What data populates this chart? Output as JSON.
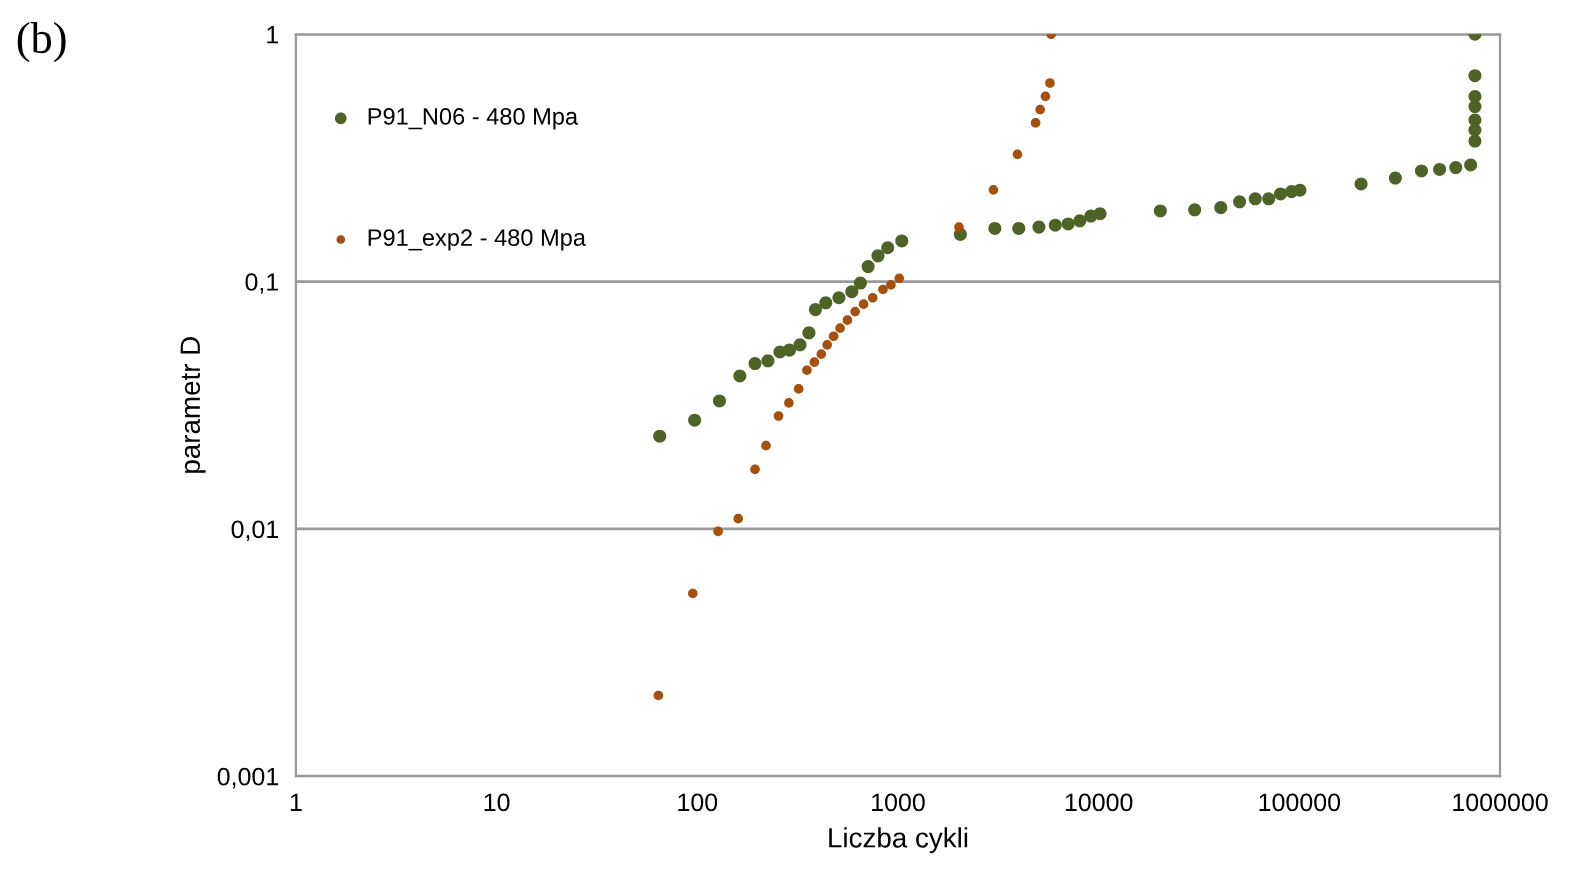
{
  "chart_data": {
    "type": "scatter",
    "title": "(b)",
    "xlabel": "Liczba cykli",
    "ylabel": "parametr D",
    "log": "xy",
    "grid": "y",
    "legend": "top left",
    "marker": "circle",
    "xlim": [
      1,
      1000000
    ],
    "ylim": [
      0.001,
      1
    ],
    "xticks": [
      1,
      10,
      100,
      1000,
      10000,
      100000,
      1000000
    ],
    "yticks": [
      {
        "value": 0.001,
        "label": "0,001"
      },
      {
        "value": 0.01,
        "label": "0,01"
      },
      {
        "value": 0.1,
        "label": "0,1"
      },
      1
    ],
    "series": [
      {
        "name": "P91_N06 - 480 Mpa",
        "color": "#4f6228",
        "x": [
          65,
          97,
          129,
          163,
          194,
          225,
          258,
          288,
          325,
          360,
          388,
          437,
          508,
          589,
          650,
          710,
          795,
          889,
          1045,
          2046,
          3040,
          4000,
          5040,
          6080,
          7050,
          8060,
          9150,
          10160,
          20300,
          30100,
          40600,
          50400,
          60300,
          70400,
          80600,
          91500,
          100700,
          203000,
          301000,
          406000,
          500000,
          602000,
          714000,
          750000,
          750000,
          750000,
          750000,
          750000,
          750000,
          750000
        ],
        "values": [
          0.0237,
          0.0275,
          0.0329,
          0.0415,
          0.0466,
          0.0478,
          0.0519,
          0.0528,
          0.0555,
          0.062,
          0.077,
          0.082,
          0.086,
          0.091,
          0.0986,
          0.115,
          0.127,
          0.137,
          0.146,
          0.155,
          0.164,
          0.164,
          0.166,
          0.169,
          0.171,
          0.176,
          0.184,
          0.188,
          0.193,
          0.195,
          0.199,
          0.21,
          0.216,
          0.216,
          0.226,
          0.231,
          0.234,
          0.248,
          0.262,
          0.28,
          0.284,
          0.289,
          0.296,
          0.37,
          0.41,
          0.45,
          0.51,
          0.56,
          0.68,
          1.0
        ]
      },
      {
        "name": "P91_exp2 - 480 Mpa",
        "color": "#a5500f",
        "x": [
          64,
          95,
          127,
          160,
          194,
          220,
          254,
          286,
          320,
          352,
          383,
          415,
          444,
          478,
          515,
          560,
          612,
          674,
          749,
          842,
          922,
          1015,
          2014,
          2990,
          3940,
          4850,
          5110,
          5430,
          5720,
          5800
        ],
        "values": [
          0.00212,
          0.00548,
          0.00977,
          0.011,
          0.0174,
          0.0217,
          0.0286,
          0.0323,
          0.0368,
          0.0438,
          0.0472,
          0.0509,
          0.0555,
          0.0601,
          0.0648,
          0.0698,
          0.0756,
          0.081,
          0.086,
          0.0929,
          0.0969,
          0.103,
          0.166,
          0.235,
          0.327,
          0.438,
          0.496,
          0.561,
          0.635,
          1.0
        ]
      }
    ]
  }
}
